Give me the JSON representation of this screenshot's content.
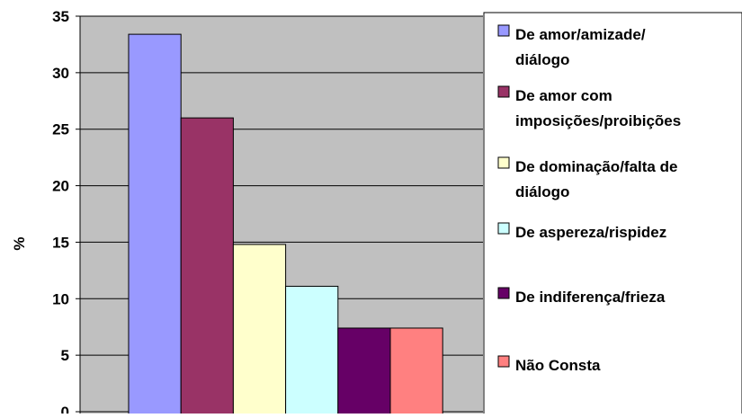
{
  "colors": {
    "plot_background": "#c0c0c0",
    "gridline": "#000000",
    "bar_outline": "#000000"
  },
  "chart_data": {
    "type": "bar",
    "title": "",
    "xlabel": "",
    "ylabel": "%",
    "ylim": [
      0,
      35
    ],
    "yticks": [
      0,
      5,
      10,
      15,
      20,
      25,
      30,
      35
    ],
    "grid": true,
    "legend_position": "right",
    "series": [
      {
        "name": "De amor/amizade/ diálogo",
        "label_lines": [
          "De amor/amizade/",
          "diálogo"
        ],
        "value": 33.4,
        "color": "#9999ff"
      },
      {
        "name": "De amor com imposições/proibições",
        "label_lines": [
          "De amor com",
          "imposições/proibições"
        ],
        "value": 26.0,
        "color": "#993366"
      },
      {
        "name": "De dominação/falta de diálogo",
        "label_lines": [
          "De dominação/falta de",
          "diálogo"
        ],
        "value": 14.8,
        "color": "#ffffcc"
      },
      {
        "name": "De aspereza/rispidez",
        "label_lines": [
          "De aspereza/rispidez"
        ],
        "value": 11.1,
        "color": "#ccffff"
      },
      {
        "name": "De indiferença/frieza",
        "label_lines": [
          "De indiferença/frieza"
        ],
        "value": 7.4,
        "color": "#660066"
      },
      {
        "name": "Não Consta",
        "label_lines": [
          "Não Consta"
        ],
        "value": 7.4,
        "color": "#ff8080"
      }
    ]
  }
}
